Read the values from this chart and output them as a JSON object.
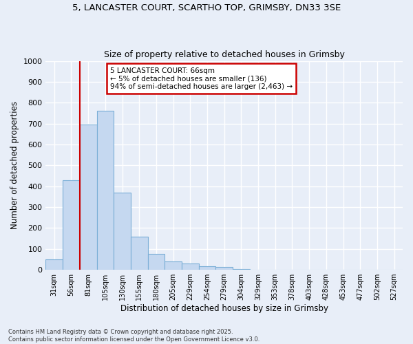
{
  "title_line1": "5, LANCASTER COURT, SCARTHO TOP, GRIMSBY, DN33 3SE",
  "title_line2": "Size of property relative to detached houses in Grimsby",
  "xlabel": "Distribution of detached houses by size in Grimsby",
  "ylabel": "Number of detached properties",
  "bar_color": "#c5d8f0",
  "bar_edge_color": "#7aaed6",
  "annotation_text": "5 LANCASTER COURT: 66sqm\n← 5% of detached houses are smaller (136)\n94% of semi-detached houses are larger (2,463) →",
  "annotation_box_color": "#ffffff",
  "annotation_box_edge_color": "#cc0000",
  "vline_x": 1.5,
  "vline_color": "#cc0000",
  "footer_text": "Contains HM Land Registry data © Crown copyright and database right 2025.\nContains public sector information licensed under the Open Government Licence v3.0.",
  "categories": [
    "31sqm",
    "56sqm",
    "81sqm",
    "105sqm",
    "130sqm",
    "155sqm",
    "180sqm",
    "205sqm",
    "229sqm",
    "254sqm",
    "279sqm",
    "304sqm",
    "329sqm",
    "353sqm",
    "378sqm",
    "403sqm",
    "428sqm",
    "453sqm",
    "477sqm",
    "502sqm",
    "527sqm"
  ],
  "values": [
    50,
    430,
    695,
    760,
    370,
    160,
    75,
    40,
    30,
    18,
    15,
    5,
    0,
    0,
    0,
    0,
    0,
    0,
    0,
    0,
    0
  ],
  "ylim": [
    0,
    1000
  ],
  "yticks": [
    0,
    100,
    200,
    300,
    400,
    500,
    600,
    700,
    800,
    900,
    1000
  ],
  "background_color": "#e8eef8",
  "plot_bg_color": "#e8eef8",
  "grid_color": "#ffffff",
  "figsize": [
    6.0,
    5.0
  ],
  "dpi": 100
}
